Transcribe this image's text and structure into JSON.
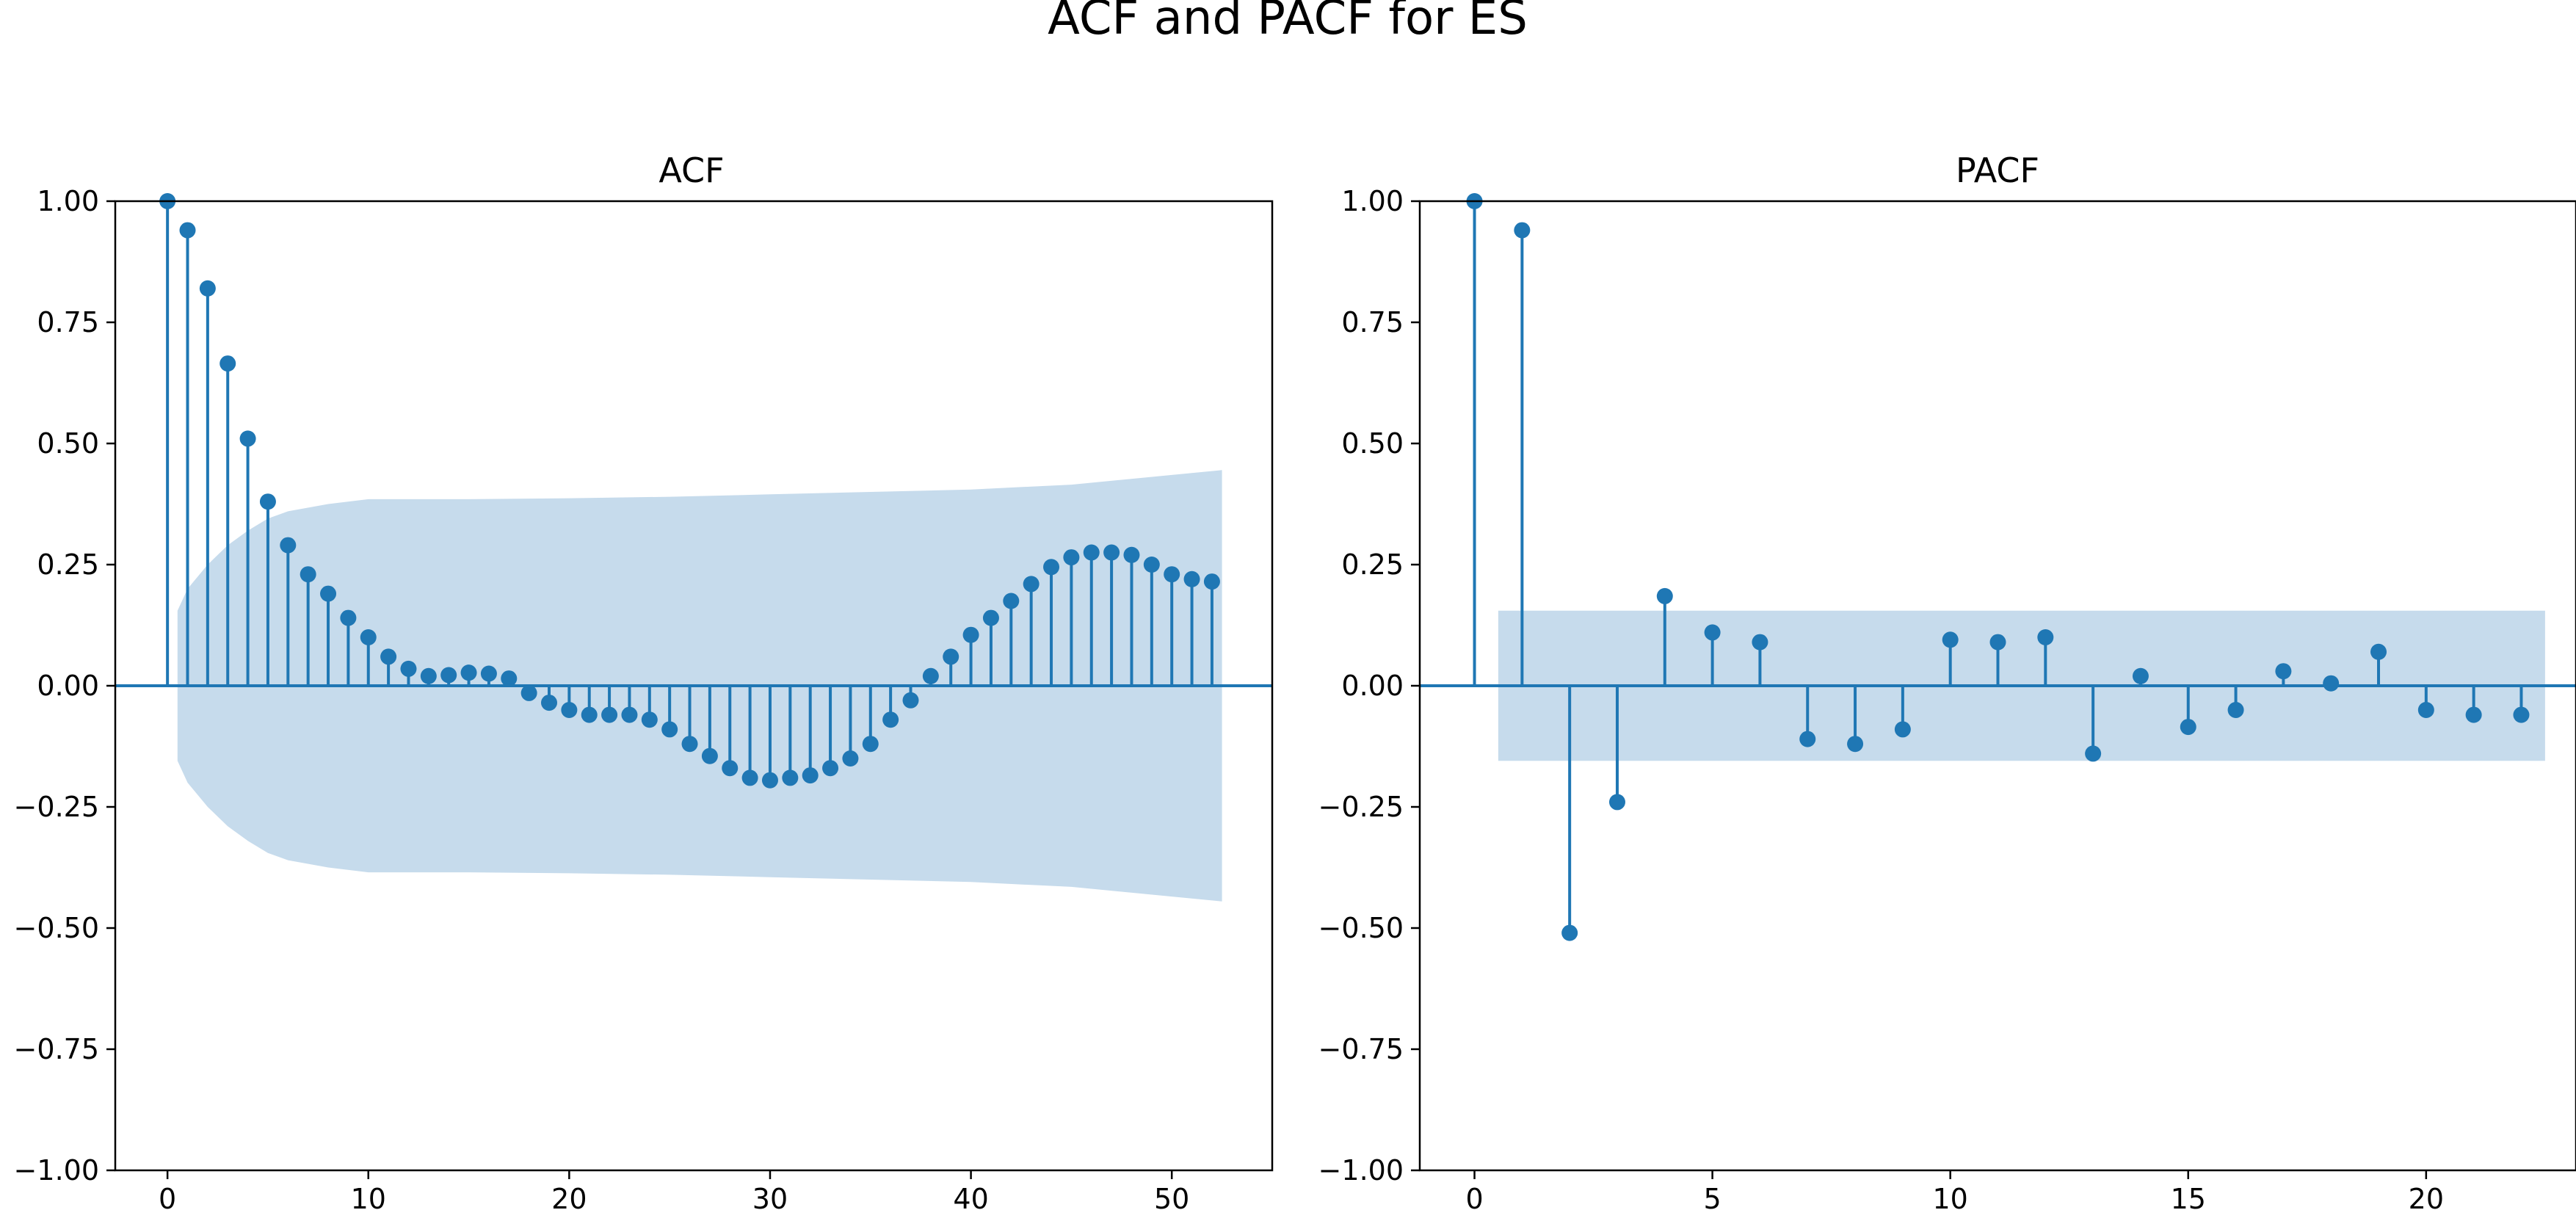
{
  "figure_title": "ACF and PACF for ES",
  "colors": {
    "stem": "#1f77b4",
    "band": "#c6dbec",
    "axis": "#000000"
  },
  "chart_data": [
    {
      "type": "stem",
      "title": "ACF",
      "xlabel": "",
      "ylabel": "",
      "xlim": [
        -2.6,
        55
      ],
      "ylim": [
        -1.0,
        1.0
      ],
      "xticks": [
        0,
        10,
        20,
        30,
        40,
        50
      ],
      "yticks": [
        -1.0,
        -0.75,
        -0.5,
        -0.25,
        0.0,
        0.25,
        0.5,
        0.75,
        1.0
      ],
      "ytick_labels": [
        "−1.00",
        "−0.75",
        "−0.50",
        "−0.25",
        "0.00",
        "0.25",
        "0.50",
        "0.75",
        "1.00"
      ],
      "xtick_labels": [
        "0",
        "10",
        "20",
        "30",
        "40",
        "50"
      ],
      "lags": [
        0,
        1,
        2,
        3,
        4,
        5,
        6,
        7,
        8,
        9,
        10,
        11,
        12,
        13,
        14,
        15,
        16,
        17,
        18,
        19,
        20,
        21,
        22,
        23,
        24,
        25,
        26,
        27,
        28,
        29,
        30,
        31,
        32,
        33,
        34,
        35,
        36,
        37,
        38,
        39,
        40,
        41,
        42,
        43,
        44,
        45,
        46,
        47,
        48,
        49,
        50,
        51,
        52
      ],
      "values": [
        1.0,
        0.94,
        0.82,
        0.665,
        0.51,
        0.38,
        0.29,
        0.23,
        0.19,
        0.14,
        0.1,
        0.06,
        0.035,
        0.02,
        0.022,
        0.027,
        0.025,
        0.015,
        -0.015,
        -0.035,
        -0.05,
        -0.06,
        -0.06,
        -0.06,
        -0.07,
        -0.09,
        -0.12,
        -0.145,
        -0.17,
        -0.19,
        -0.195,
        -0.19,
        -0.185,
        -0.17,
        -0.15,
        -0.12,
        -0.07,
        -0.03,
        0.02,
        0.06,
        0.105,
        0.14,
        0.175,
        0.21,
        0.245,
        0.265,
        0.275,
        0.275,
        0.27,
        0.25,
        0.23,
        0.22,
        0.215
      ],
      "confidence_band": {
        "lags": [
          0.5,
          1,
          2,
          3,
          4,
          5,
          6,
          8,
          10,
          15,
          20,
          25,
          30,
          35,
          40,
          45,
          50,
          52.5
        ],
        "upper": [
          0.155,
          0.2,
          0.25,
          0.29,
          0.32,
          0.345,
          0.36,
          0.375,
          0.385,
          0.385,
          0.387,
          0.39,
          0.395,
          0.4,
          0.405,
          0.415,
          0.435,
          0.445
        ],
        "lower": [
          -0.155,
          -0.2,
          -0.25,
          -0.29,
          -0.32,
          -0.345,
          -0.36,
          -0.375,
          -0.385,
          -0.385,
          -0.387,
          -0.39,
          -0.395,
          -0.4,
          -0.405,
          -0.415,
          -0.435,
          -0.445
        ]
      }
    },
    {
      "type": "stem",
      "title": "PACF",
      "xlabel": "",
      "ylabel": "",
      "xlim": [
        -1.15,
        23.15
      ],
      "ylim": [
        -1.0,
        1.0
      ],
      "xticks": [
        0,
        5,
        10,
        15,
        20
      ],
      "yticks": [
        -1.0,
        -0.75,
        -0.5,
        -0.25,
        0.0,
        0.25,
        0.5,
        0.75,
        1.0
      ],
      "ytick_labels": [
        "−1.00",
        "−0.75",
        "−0.50",
        "−0.25",
        "0.00",
        "0.25",
        "0.50",
        "0.75",
        "1.00"
      ],
      "xtick_labels": [
        "0",
        "5",
        "10",
        "15",
        "20"
      ],
      "lags": [
        0,
        1,
        2,
        3,
        4,
        5,
        6,
        7,
        8,
        9,
        10,
        11,
        12,
        13,
        14,
        15,
        16,
        17,
        18,
        19,
        20,
        21,
        22
      ],
      "values": [
        1.0,
        0.94,
        -0.51,
        -0.24,
        0.185,
        0.11,
        0.09,
        -0.11,
        -0.12,
        -0.09,
        0.095,
        0.09,
        0.1,
        -0.14,
        0.02,
        -0.085,
        -0.05,
        0.03,
        0.005,
        0.07,
        -0.05,
        -0.06,
        -0.06
      ],
      "confidence_band": {
        "lags": [
          0.5,
          22.5
        ],
        "upper": [
          0.155,
          0.155
        ],
        "lower": [
          -0.155,
          -0.155
        ]
      }
    }
  ]
}
